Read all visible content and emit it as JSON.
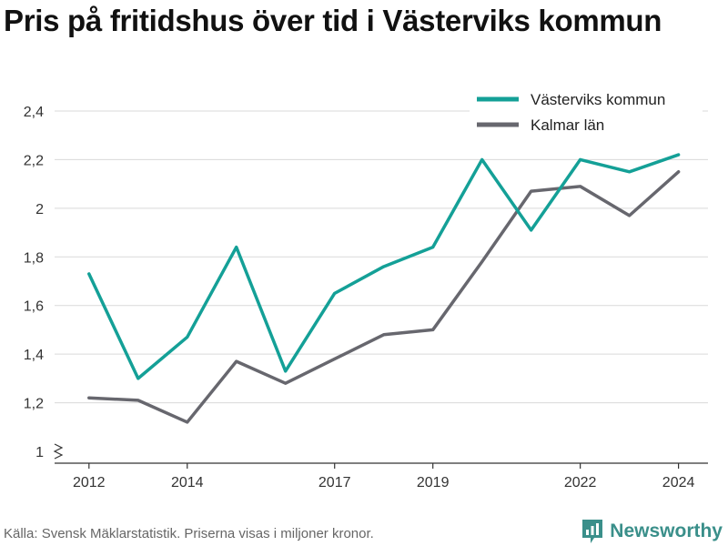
{
  "title": "Pris på fritidshus över tid i Västerviks kommun",
  "footer": {
    "source": "Källa: Svensk Mäklarstatistik. Priserna visas i miljoner kronor.",
    "brand": "Newsworthy"
  },
  "colors": {
    "series_1": "#14a097",
    "series_2": "#67676e",
    "grid": "#d9d9d9",
    "axis": "#333333",
    "brand": "#3a8f8a"
  },
  "chart_data": {
    "type": "line",
    "x": [
      2012,
      2013,
      2014,
      2015,
      2016,
      2017,
      2018,
      2019,
      2020,
      2021,
      2022,
      2023,
      2024
    ],
    "series": [
      {
        "name": "Västerviks kommun",
        "color": "#14a097",
        "values": [
          1.73,
          1.3,
          1.47,
          1.84,
          1.33,
          1.65,
          1.76,
          1.84,
          2.2,
          1.91,
          2.2,
          2.15,
          2.22
        ]
      },
      {
        "name": "Kalmar län",
        "color": "#67676e",
        "values": [
          1.22,
          1.21,
          1.12,
          1.37,
          1.28,
          1.38,
          1.48,
          1.5,
          1.78,
          2.07,
          2.09,
          1.97,
          2.15
        ]
      }
    ],
    "x_ticks": [
      2012,
      2014,
      2017,
      2019,
      2022,
      2024
    ],
    "x_tick_labels": [
      "2012",
      "2014",
      "2017",
      "2019",
      "2022",
      "2024"
    ],
    "y_ticks": [
      1,
      1.2,
      1.4,
      1.6,
      1.8,
      2,
      2.2,
      2.4
    ],
    "y_tick_labels": [
      "1",
      "1,2",
      "1,4",
      "1,6",
      "1,8",
      "2",
      "2,2",
      "2,4"
    ],
    "ylim": [
      1,
      2.4
    ],
    "xlim": [
      2011.3,
      2024.6
    ],
    "grid": "horizontal",
    "axis_break": true,
    "legend": "top-right",
    "title": "Pris på fritidshus över tid i Västerviks kommun",
    "xlabel": "",
    "ylabel": ""
  }
}
